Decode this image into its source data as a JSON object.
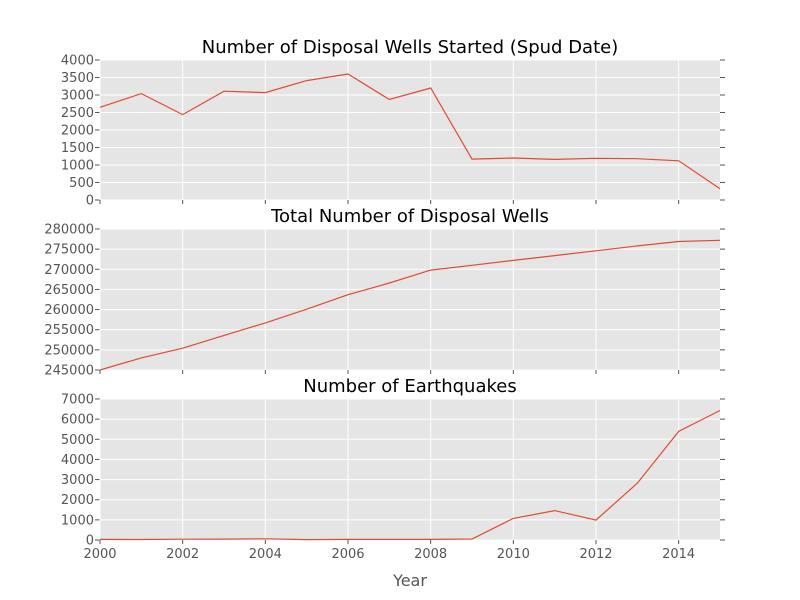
{
  "chart_data": [
    {
      "type": "line",
      "title": "Number of Disposal Wells Started (Spud Date)",
      "x": [
        2000,
        2001,
        2002,
        2003,
        2004,
        2005,
        2006,
        2007,
        2008,
        2009,
        2010,
        2011,
        2012,
        2013,
        2014,
        2015
      ],
      "series": [
        {
          "values": [
            2650,
            3040,
            2440,
            3110,
            3070,
            3410,
            3600,
            2870,
            3200,
            1170,
            1200,
            1160,
            1190,
            1180,
            1120,
            320
          ]
        }
      ],
      "xlim": [
        2000,
        2015
      ],
      "ylim": [
        0,
        4000
      ],
      "yticks": [
        0,
        500,
        1000,
        1500,
        2000,
        2500,
        3000,
        3500,
        4000
      ],
      "grid": true
    },
    {
      "type": "line",
      "title": "Total Number of Disposal Wells",
      "x": [
        2000,
        2001,
        2002,
        2003,
        2004,
        2005,
        2006,
        2007,
        2008,
        2009,
        2010,
        2011,
        2012,
        2013,
        2014,
        2015
      ],
      "series": [
        {
          "values": [
            245000,
            248000,
            250400,
            253600,
            256700,
            260100,
            263700,
            266600,
            269800,
            271000,
            272200,
            273400,
            274600,
            275800,
            276900,
            277200
          ]
        }
      ],
      "xlim": [
        2000,
        2015
      ],
      "ylim": [
        245000,
        280000
      ],
      "yticks": [
        245000,
        250000,
        255000,
        260000,
        265000,
        270000,
        275000,
        280000
      ],
      "grid": true
    },
    {
      "type": "line",
      "title": "Number of Earthquakes",
      "x": [
        2000,
        2001,
        2002,
        2003,
        2004,
        2005,
        2006,
        2007,
        2008,
        2009,
        2010,
        2011,
        2012,
        2013,
        2014,
        2015
      ],
      "series": [
        {
          "values": [
            30,
            25,
            40,
            45,
            60,
            20,
            30,
            30,
            30,
            50,
            1070,
            1460,
            990,
            2820,
            5390,
            6430
          ]
        }
      ],
      "xlim": [
        2000,
        2015
      ],
      "ylim": [
        0,
        7000
      ],
      "yticks": [
        0,
        1000,
        2000,
        3000,
        4000,
        5000,
        6000,
        7000
      ],
      "xticks": [
        2000,
        2002,
        2004,
        2006,
        2008,
        2010,
        2012,
        2014
      ],
      "xlabel": "Year",
      "grid": true
    }
  ],
  "colors": {
    "series": "#e24a33",
    "panel_background": "#e5e5e5",
    "grid": "#ffffff",
    "text": "#555555"
  }
}
